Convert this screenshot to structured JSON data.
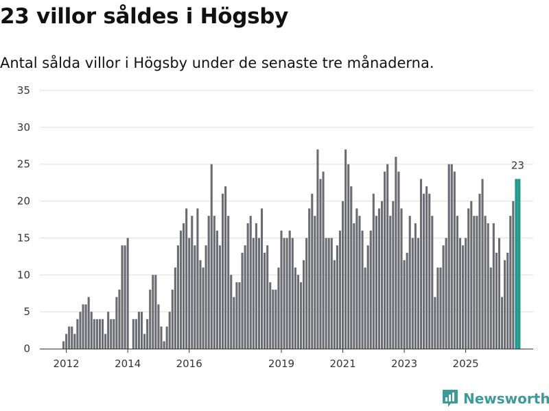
{
  "title": "23 villor såldes i Högsby",
  "subtitle": "Antal sålda villor i Högsby under de senaste tre månaderna.",
  "brand": {
    "name": "Newsworthy",
    "icon": "newsworthy-logo-icon"
  },
  "colors": {
    "bar": "#6b6b72",
    "highlight": "#23998e",
    "grid": "#dddddd",
    "axis": "#333333",
    "text": "#333333",
    "brand": "#3c9a9a"
  },
  "chart_data": {
    "type": "bar",
    "title": "23 villor såldes i Högsby",
    "xlabel": "",
    "ylabel": "",
    "ylim": [
      0,
      35
    ],
    "yticks": [
      0,
      5,
      10,
      15,
      20,
      25,
      30,
      35
    ],
    "xticks": [
      {
        "label": "2012",
        "index": 1
      },
      {
        "label": "2014",
        "index": 23
      },
      {
        "label": "2016",
        "index": 45
      },
      {
        "label": "2019",
        "index": 78
      },
      {
        "label": "2021",
        "index": 100
      },
      {
        "label": "2023",
        "index": 122
      },
      {
        "label": "2025",
        "index": 144
      }
    ],
    "grid": true,
    "values": [
      1,
      2,
      3,
      3,
      2,
      4,
      5,
      6,
      6,
      7,
      5,
      4,
      4,
      4,
      4,
      2,
      5,
      4,
      4,
      7,
      8,
      14,
      14,
      15,
      0,
      4,
      4,
      5,
      5,
      2,
      4,
      8,
      10,
      10,
      6,
      3,
      1,
      3,
      5,
      8,
      11,
      14,
      16,
      17,
      19,
      15,
      18,
      14,
      19,
      12,
      11,
      14,
      18,
      25,
      18,
      16,
      14,
      21,
      22,
      18,
      10,
      7,
      9,
      9,
      13,
      14,
      17,
      18,
      15,
      17,
      15,
      19,
      13,
      14,
      9,
      8,
      8,
      11,
      16,
      15,
      15,
      16,
      15,
      11,
      10,
      9,
      12,
      15,
      19,
      21,
      18,
      27,
      23,
      24,
      15,
      15,
      15,
      12,
      14,
      16,
      20,
      27,
      25,
      22,
      17,
      19,
      18,
      16,
      11,
      14,
      16,
      21,
      18,
      19,
      20,
      24,
      25,
      18,
      20,
      26,
      24,
      19,
      12,
      13,
      18,
      15,
      17,
      15,
      23,
      21,
      22,
      21,
      18,
      7,
      11,
      11,
      14,
      15,
      25,
      25,
      24,
      18,
      15,
      14,
      15,
      19,
      20,
      18,
      18,
      21,
      23,
      18,
      17,
      11,
      17,
      13,
      15,
      7,
      12,
      13,
      18,
      20,
      23,
      23
    ],
    "highlight": {
      "label": "23",
      "value": 23,
      "indices": [
        162,
        163
      ]
    }
  }
}
